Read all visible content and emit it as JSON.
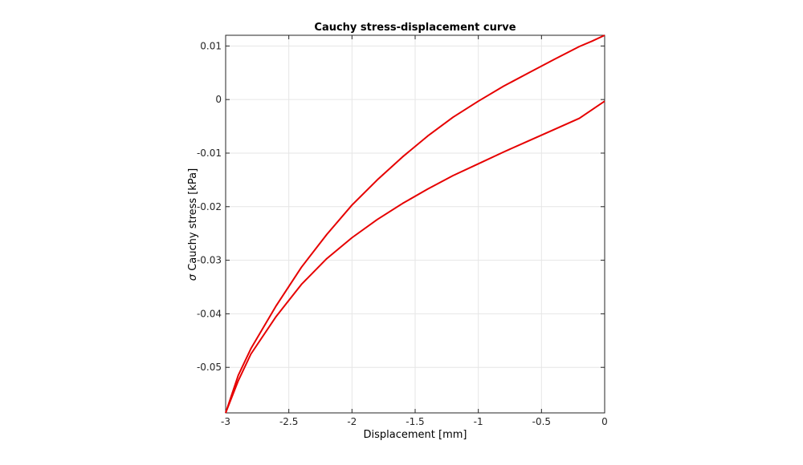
{
  "chart_data": {
    "type": "line",
    "title": "Cauchy stress-displacement curve",
    "xlabel": "Displacement [mm]",
    "ylabel_symbol": "σ",
    "ylabel": "Cauchy stress [kPa]",
    "xlim": [
      -3,
      0
    ],
    "ylim": [
      -0.0585,
      0.012
    ],
    "xticks": [
      -3,
      -2.5,
      -2,
      -1.5,
      -1,
      -0.5,
      0
    ],
    "xtick_labels": [
      "-3",
      "-2.5",
      "-2",
      "-1.5",
      "-1",
      "-0.5",
      "0"
    ],
    "yticks": [
      0.01,
      0,
      -0.01,
      -0.02,
      -0.03,
      -0.04,
      -0.05
    ],
    "ytick_labels": [
      "0.01",
      "0",
      "-0.01",
      "-0.02",
      "-0.03",
      "-0.04",
      "-0.05"
    ],
    "grid": true,
    "color": "#e60000",
    "series": [
      {
        "x": [
          0,
          -0.1,
          -0.2,
          -0.4,
          -0.6,
          -0.8,
          -1.0,
          -1.2,
          -1.4,
          -1.6,
          -1.8,
          -2.0,
          -2.2,
          -2.4,
          -2.6,
          -2.8,
          -2.9,
          -3.0
        ],
        "y": [
          0.012,
          0.0109,
          0.0099,
          0.0075,
          0.005,
          0.0025,
          -0.0003,
          -0.0033,
          -0.0068,
          -0.0107,
          -0.015,
          -0.0197,
          -0.0252,
          -0.0313,
          -0.0385,
          -0.0465,
          -0.0515,
          -0.0585
        ]
      },
      {
        "x": [
          -3.0,
          -2.9,
          -2.8,
          -2.6,
          -2.4,
          -2.2,
          -2.0,
          -1.8,
          -1.6,
          -1.4,
          -1.2,
          -1.0,
          -0.8,
          -0.6,
          -0.4,
          -0.2,
          0
        ],
        "y": [
          -0.0585,
          -0.0525,
          -0.0475,
          -0.0405,
          -0.0345,
          -0.0297,
          -0.0258,
          -0.0224,
          -0.0194,
          -0.0167,
          -0.0142,
          -0.012,
          -0.0098,
          -0.0077,
          -0.0056,
          -0.0035,
          -0.0003
        ]
      }
    ]
  }
}
